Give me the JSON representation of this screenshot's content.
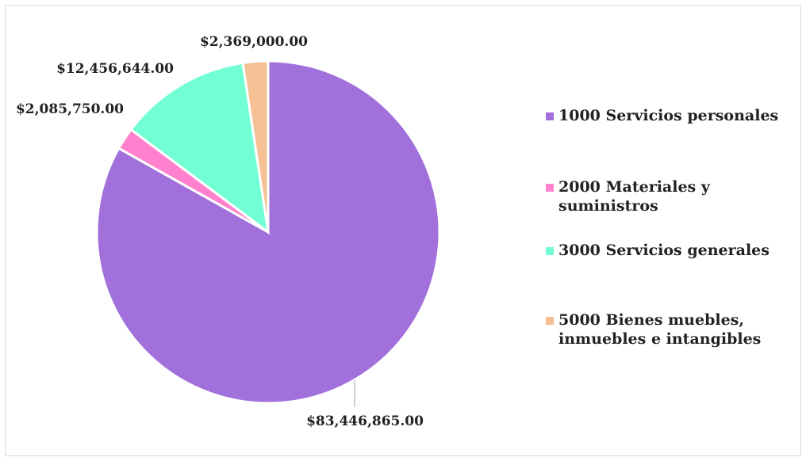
{
  "chart_data": {
    "type": "pie",
    "title": "",
    "legend_position": "right",
    "categories": [
      "1000 Servicios personales",
      "2000 Materiales y suministros",
      "3000 Servicios generales",
      "5000 Bienes muebles, inmuebles e intangibles"
    ],
    "legend_lines": [
      [
        "1000 Servicios personales"
      ],
      [
        "2000 Materiales y",
        "suministros"
      ],
      [
        "3000 Servicios generales"
      ],
      [
        "5000 Bienes muebles,",
        "inmuebles e intangibles"
      ]
    ],
    "values": [
      83446865.0,
      2085750.0,
      12456644.0,
      2369000.0
    ],
    "data_labels": [
      "$83,446,865.00",
      "$2,085,750.00",
      "$12,456,644.00",
      "$2,369,000.00"
    ],
    "colors": [
      "#a170db",
      "#ff80cc",
      "#73ffd4",
      "#f5c093"
    ]
  }
}
